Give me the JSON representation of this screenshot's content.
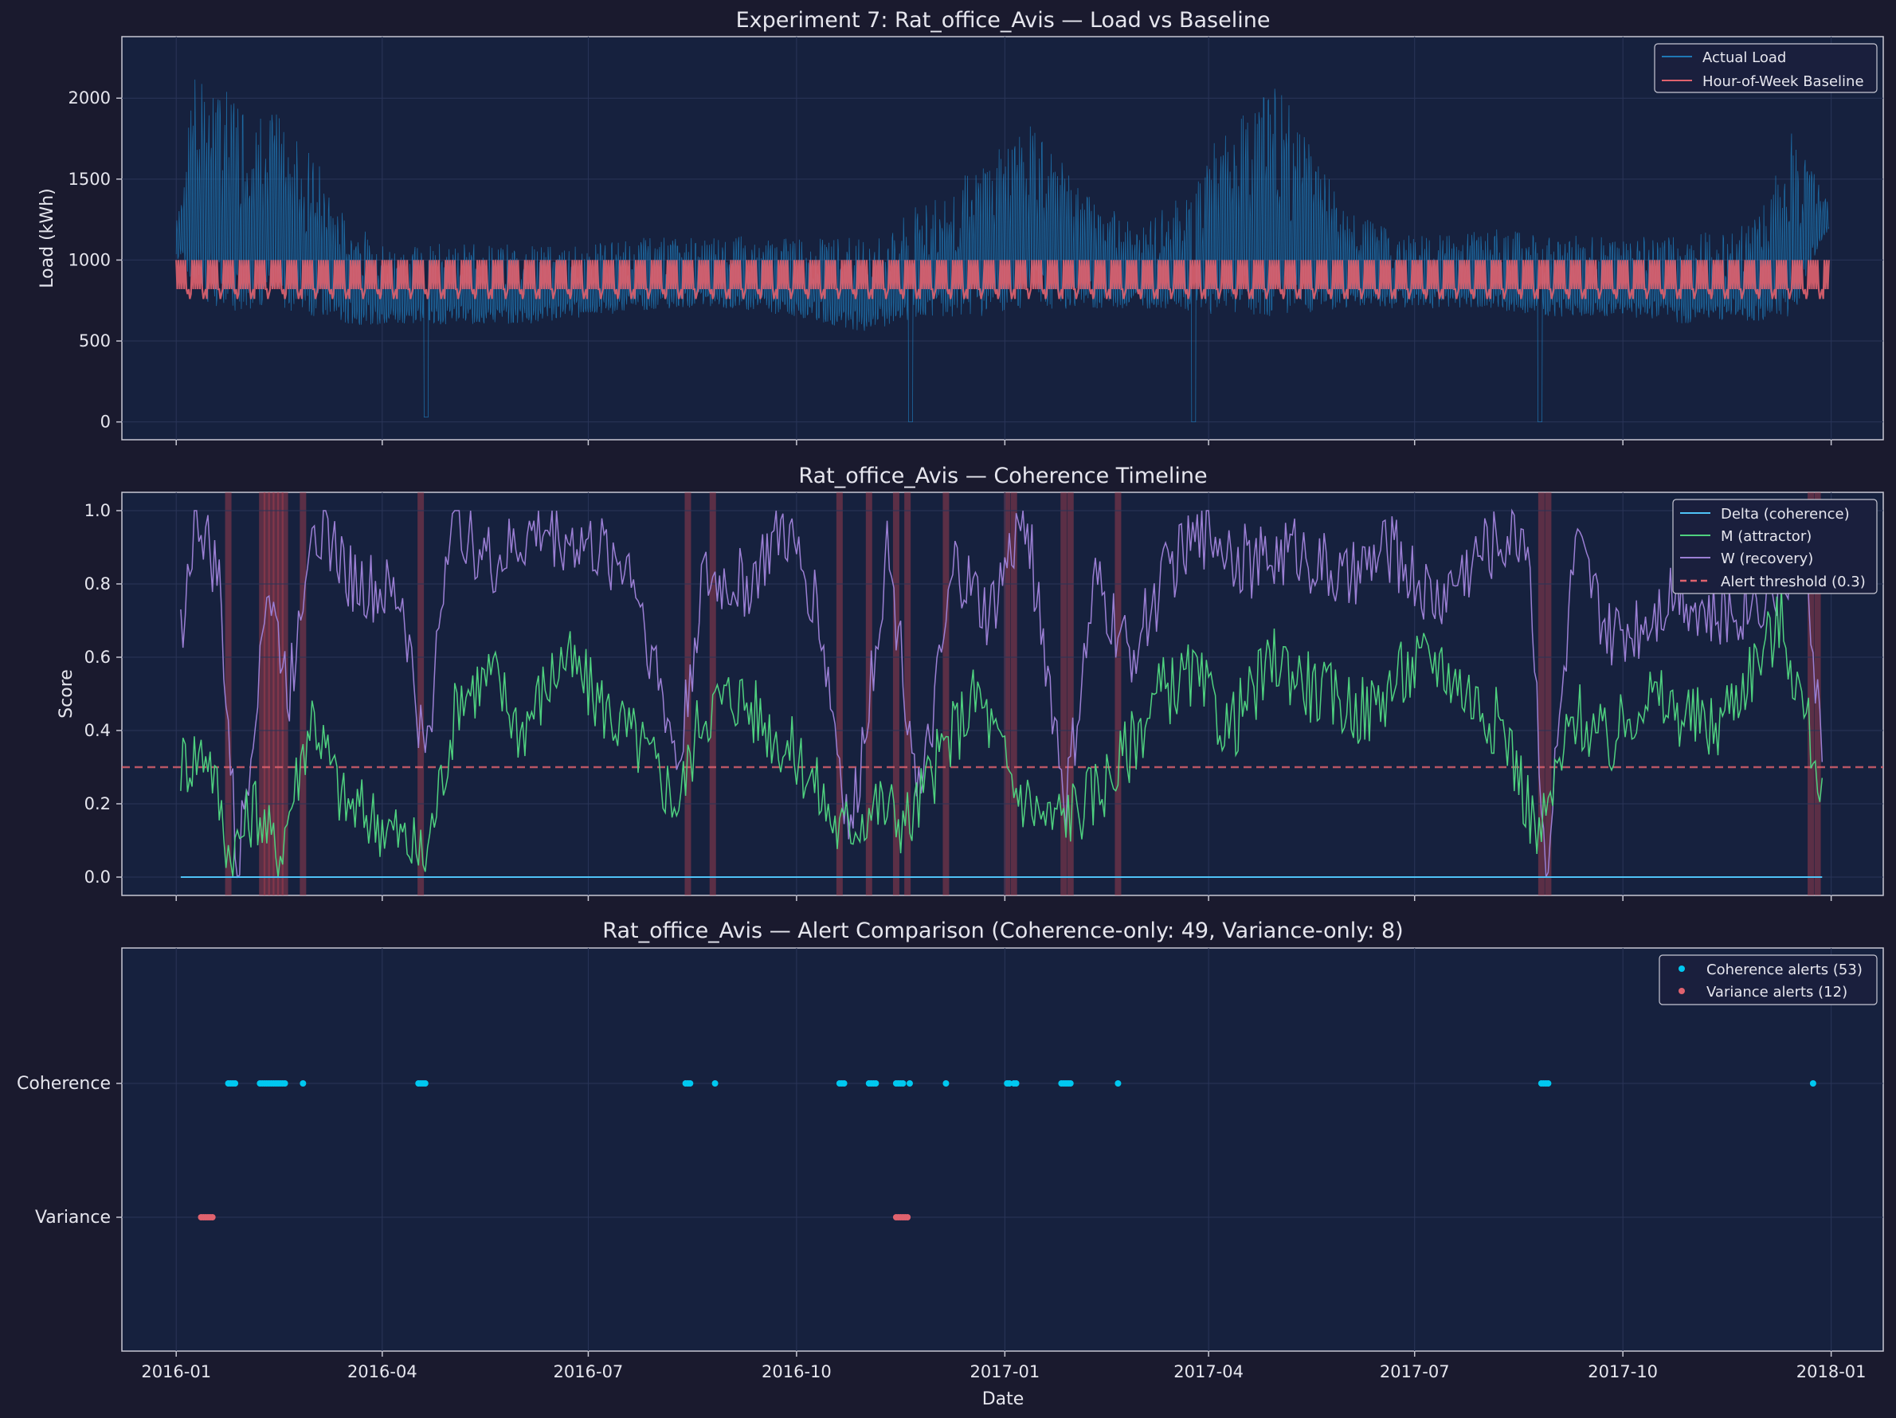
{
  "x_axis": {
    "ticks": [
      "2016-01",
      "2016-04",
      "2016-07",
      "2016-10",
      "2017-01",
      "2017-04",
      "2017-07",
      "2017-10",
      "2018-01"
    ],
    "tick_dates": [
      "2016-01-01",
      "2016-04-01",
      "2016-07-01",
      "2016-10-01",
      "2017-01-01",
      "2017-04-01",
      "2017-07-01",
      "2017-10-01",
      "2018-01-01"
    ],
    "range": [
      "2015-12-08",
      "2018-01-24"
    ],
    "label": "Date"
  },
  "chart_data": [
    {
      "type": "line",
      "title": "Experiment 7: Rat_office_Avis — Load vs Baseline",
      "xlabel": "",
      "ylabel": "Load (kWh)",
      "ylim": [
        -110,
        2380
      ],
      "yticks": [
        "0",
        "500",
        "1000",
        "1500",
        "2000"
      ],
      "ytick_values": [
        0,
        500,
        1000,
        1500,
        2000
      ],
      "legend": {
        "placement": "top-right",
        "entries": [
          "Actual Load",
          "Hour-of-Week Baseline"
        ]
      },
      "series": [
        {
          "name": "Actual Load",
          "color": "#1f77b4",
          "x": [
            "2016-01-01",
            "2016-01-10",
            "2016-01-20",
            "2016-02-01",
            "2016-02-15",
            "2016-03-01",
            "2016-03-15",
            "2016-04-01",
            "2016-04-20",
            "2016-05-01",
            "2016-06-01",
            "2016-07-01",
            "2016-08-01",
            "2016-09-01",
            "2016-10-01",
            "2016-11-01",
            "2016-12-01",
            "2016-12-20",
            "2017-01-10",
            "2017-02-01",
            "2017-03-01",
            "2017-03-20",
            "2017-04-01",
            "2017-05-01",
            "2017-06-01",
            "2017-07-01",
            "2017-08-01",
            "2017-09-01",
            "2017-10-01",
            "2017-11-01",
            "2017-12-01",
            "2017-12-15",
            "2017-12-31"
          ],
          "low": [
            1000,
            800,
            650,
            700,
            700,
            650,
            600,
            600,
            600,
            600,
            600,
            650,
            700,
            700,
            650,
            550,
            650,
            650,
            700,
            700,
            700,
            700,
            650,
            650,
            700,
            700,
            700,
            650,
            650,
            600,
            620,
            650,
            1200
          ],
          "high": [
            1300,
            2200,
            2100,
            2000,
            1900,
            1700,
            1300,
            1100,
            1100,
            1100,
            1100,
            1100,
            1150,
            1150,
            1150,
            1150,
            1400,
            1600,
            1900,
            1500,
            1200,
            1400,
            1700,
            2100,
            1300,
            1150,
            1200,
            1150,
            1150,
            1150,
            1300,
            1800,
            1350
          ],
          "dips": [
            [
              "2016-04-20",
              30
            ],
            [
              "2016-11-20",
              0
            ],
            [
              "2017-03-25",
              0
            ],
            [
              "2017-08-25",
              0
            ]
          ]
        },
        {
          "name": "Hour-of-Week Baseline",
          "color": "#e0626e",
          "x": [
            "2016-01-01",
            "2017-12-31"
          ],
          "low": [
            760,
            760
          ],
          "high": [
            1000,
            1000
          ]
        }
      ]
    },
    {
      "type": "line",
      "title": "Rat_office_Avis — Coherence Timeline",
      "xlabel": "",
      "ylabel": "Score",
      "ylim": [
        -0.05,
        1.05
      ],
      "yticks": [
        "0.0",
        "0.2",
        "0.4",
        "0.6",
        "0.8",
        "1.0"
      ],
      "ytick_values": [
        0,
        0.2,
        0.4,
        0.6,
        0.8,
        1.0
      ],
      "threshold": 0.3,
      "legend": {
        "placement": "top-right",
        "entries": [
          "Delta (coherence)",
          "M (attractor)",
          "W (recovery)",
          "Alert threshold (0.3)"
        ]
      },
      "series": [
        {
          "name": "Delta (coherence)",
          "color": "#4fc3f7",
          "x": [
            "2016-01-03",
            "2017-12-28"
          ],
          "values": [
            0.0,
            0.0
          ]
        },
        {
          "name": "M (attractor)",
          "color": "#4fd17f",
          "x": [
            "2016-01-03",
            "2016-01-15",
            "2016-01-25",
            "2016-02-05",
            "2016-02-15",
            "2016-03-01",
            "2016-03-15",
            "2016-04-01",
            "2016-04-20",
            "2016-05-05",
            "2016-05-20",
            "2016-06-01",
            "2016-06-20",
            "2016-07-10",
            "2016-07-25",
            "2016-08-10",
            "2016-08-20",
            "2016-09-05",
            "2016-09-20",
            "2016-10-05",
            "2016-10-20",
            "2016-11-05",
            "2016-11-20",
            "2016-12-05",
            "2016-12-20",
            "2017-01-05",
            "2017-01-20",
            "2017-02-05",
            "2017-02-20",
            "2017-03-10",
            "2017-03-25",
            "2017-04-10",
            "2017-05-01",
            "2017-05-20",
            "2017-06-10",
            "2017-06-25",
            "2017-07-10",
            "2017-07-25",
            "2017-08-10",
            "2017-08-25",
            "2017-09-10",
            "2017-09-25",
            "2017-10-10",
            "2017-10-25",
            "2017-11-10",
            "2017-11-25",
            "2017-12-10",
            "2017-12-28"
          ],
          "values": [
            0.31,
            0.35,
            0.05,
            0.2,
            0.05,
            0.45,
            0.2,
            0.15,
            0.05,
            0.5,
            0.55,
            0.4,
            0.6,
            0.45,
            0.35,
            0.2,
            0.45,
            0.5,
            0.4,
            0.3,
            0.12,
            0.2,
            0.15,
            0.35,
            0.5,
            0.25,
            0.15,
            0.2,
            0.3,
            0.5,
            0.55,
            0.4,
            0.6,
            0.5,
            0.45,
            0.55,
            0.6,
            0.5,
            0.4,
            0.1,
            0.45,
            0.35,
            0.5,
            0.45,
            0.4,
            0.55,
            0.7,
            0.25
          ]
        },
        {
          "name": "W (recovery)",
          "color": "#9b7fd4",
          "x": [
            "2016-01-03",
            "2016-01-10",
            "2016-01-20",
            "2016-01-28",
            "2016-02-10",
            "2016-02-20",
            "2016-03-01",
            "2016-03-20",
            "2016-04-10",
            "2016-04-20",
            "2016-05-01",
            "2016-05-20",
            "2016-06-10",
            "2016-07-01",
            "2016-07-20",
            "2016-08-10",
            "2016-08-20",
            "2016-09-10",
            "2016-09-25",
            "2016-10-10",
            "2016-10-25",
            "2016-11-10",
            "2016-11-25",
            "2016-12-10",
            "2016-12-25",
            "2017-01-10",
            "2017-01-28",
            "2017-02-10",
            "2017-02-25",
            "2017-03-15",
            "2017-04-01",
            "2017-04-20",
            "2017-05-10",
            "2017-06-01",
            "2017-06-20",
            "2017-07-10",
            "2017-08-01",
            "2017-08-20",
            "2017-08-28",
            "2017-09-10",
            "2017-09-25",
            "2017-10-10",
            "2017-10-25",
            "2017-11-10",
            "2017-11-25",
            "2017-12-10",
            "2017-12-20",
            "2017-12-28"
          ],
          "values": [
            0.67,
            1.0,
            0.8,
            0.0,
            0.8,
            0.5,
            1.0,
            0.8,
            0.75,
            0.3,
            1.0,
            0.85,
            0.95,
            0.9,
            0.85,
            0.3,
            0.8,
            0.8,
            0.95,
            0.75,
            0.1,
            0.9,
            0.2,
            0.85,
            0.7,
            1.0,
            0.2,
            0.8,
            0.6,
            0.85,
            0.95,
            0.85,
            0.9,
            0.8,
            0.9,
            0.75,
            0.9,
            0.95,
            0.0,
            0.9,
            0.65,
            0.7,
            0.8,
            0.7,
            0.75,
            0.8,
            0.95,
            0.33
          ]
        },
        {
          "name": "Alert threshold (0.3)",
          "color": "#e0626e",
          "x": [],
          "values": []
        }
      ],
      "alert_bands": [
        "2016-01-24",
        "2016-02-08",
        "2016-02-10",
        "2016-02-12",
        "2016-02-14",
        "2016-02-16",
        "2016-02-18",
        "2016-02-26",
        "2016-04-18",
        "2016-08-14",
        "2016-08-25",
        "2016-10-20",
        "2016-11-02",
        "2016-11-14",
        "2016-11-19",
        "2016-12-06",
        "2017-01-02",
        "2017-01-05",
        "2017-01-27",
        "2017-01-30",
        "2017-02-20",
        "2017-08-26",
        "2017-08-29",
        "2017-12-23",
        "2017-12-26"
      ]
    },
    {
      "type": "scatter",
      "title": "Rat_office_Avis — Alert Comparison (Coherence-only: 49, Variance-only: 8)",
      "xlabel": "Date",
      "ylabel": "",
      "categories": [
        "Coherence",
        "Variance"
      ],
      "legend": {
        "placement": "top-right",
        "entries": [
          "Coherence alerts (53)",
          "Variance alerts (12)"
        ]
      },
      "series": [
        {
          "name": "Coherence alerts (53)",
          "color": "#00c8f0",
          "row": "Coherence",
          "x": [
            "2016-01-24",
            "2016-01-25",
            "2016-01-26",
            "2016-01-27",
            "2016-02-07",
            "2016-02-08",
            "2016-02-09",
            "2016-02-10",
            "2016-02-11",
            "2016-02-12",
            "2016-02-13",
            "2016-02-14",
            "2016-02-15",
            "2016-02-16",
            "2016-02-17",
            "2016-02-18",
            "2016-02-26",
            "2016-04-17",
            "2016-04-18",
            "2016-04-19",
            "2016-04-20",
            "2016-08-13",
            "2016-08-14",
            "2016-08-15",
            "2016-08-26",
            "2016-10-20",
            "2016-10-21",
            "2016-10-22",
            "2016-11-02",
            "2016-11-03",
            "2016-11-04",
            "2016-11-05",
            "2016-11-14",
            "2016-11-15",
            "2016-11-16",
            "2016-11-17",
            "2016-11-20",
            "2016-12-06",
            "2017-01-02",
            "2017-01-03",
            "2017-01-05",
            "2017-01-06",
            "2017-01-26",
            "2017-01-27",
            "2017-01-28",
            "2017-01-29",
            "2017-01-30",
            "2017-02-20",
            "2017-08-26",
            "2017-08-27",
            "2017-08-28",
            "2017-08-29",
            "2017-12-24"
          ]
        },
        {
          "name": "Variance alerts (12)",
          "color": "#e0626e",
          "row": "Variance",
          "x": [
            "2016-01-12",
            "2016-01-13",
            "2016-01-14",
            "2016-01-15",
            "2016-01-16",
            "2016-01-17",
            "2016-11-14",
            "2016-11-15",
            "2016-11-16",
            "2016-11-17",
            "2016-11-18",
            "2016-11-19"
          ]
        }
      ]
    }
  ]
}
